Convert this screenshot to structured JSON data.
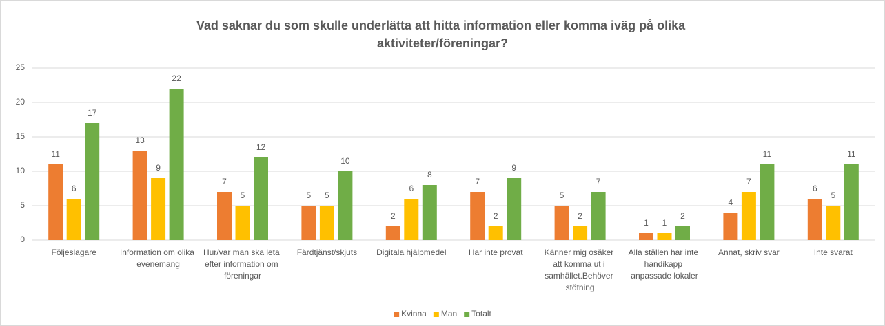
{
  "chart_data": {
    "type": "bar",
    "title": "Vad saknar du som skulle underlätta att hitta information eller komma iväg på olika aktiviteter/föreningar?",
    "categories": [
      "Följeslagare",
      "Information om olika evenemang",
      "Hur/var man ska leta efter information om föreningar",
      "Färdtjänst/skjuts",
      "Digitala hjälpmedel",
      "Har inte provat",
      "Känner mig osäker att komma ut i samhället.Behöver stötning",
      "Alla ställen har inte handikapp anpassade lokaler",
      "Annat, skriv svar",
      "Inte svarat"
    ],
    "series": [
      {
        "name": "Kvinna",
        "color": "#ed7d31",
        "values": [
          11,
          13,
          7,
          5,
          2,
          7,
          5,
          1,
          4,
          6
        ]
      },
      {
        "name": "Man",
        "color": "#ffc000",
        "values": [
          6,
          9,
          5,
          5,
          6,
          2,
          2,
          1,
          7,
          5
        ]
      },
      {
        "name": "Totalt",
        "color": "#70ad47",
        "values": [
          17,
          22,
          12,
          10,
          8,
          9,
          7,
          2,
          11,
          11
        ]
      }
    ],
    "ylim": [
      0,
      25
    ],
    "yticks": [
      0,
      5,
      10,
      15,
      20,
      25
    ],
    "grid": true,
    "legend": "bottom"
  }
}
